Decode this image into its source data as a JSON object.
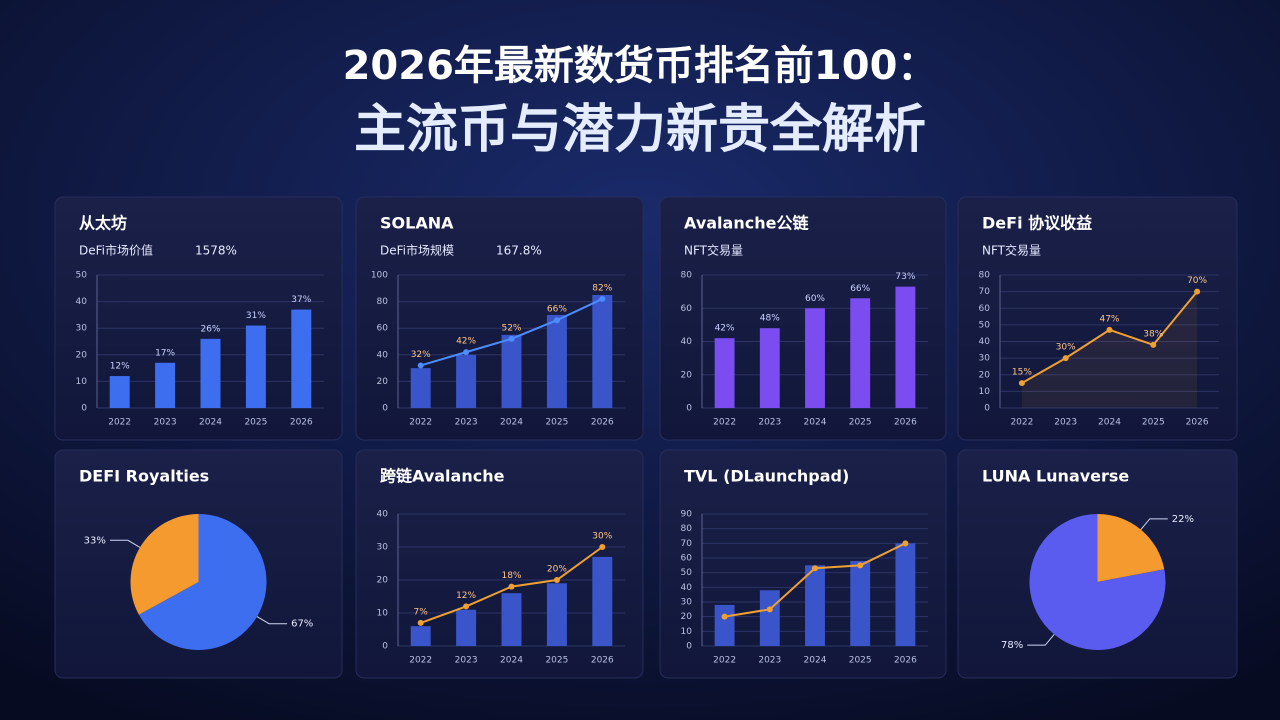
{
  "header": {
    "title": "2026年最新数货币排名前100：",
    "subtitle": "主流币与潜力新贵全解析"
  },
  "chart_data": [
    {
      "type": "bar",
      "title": "从太坊",
      "subtitle": "DeFi市场价值",
      "note": "1578%",
      "categories": [
        "2022",
        "2023",
        "2024",
        "2025",
        "2026"
      ],
      "values": [
        12,
        17,
        26,
        31,
        37
      ],
      "value_labels": [
        "12%",
        "17%",
        "26%",
        "31%",
        "37%"
      ],
      "color": "#3d6ef0",
      "ylim": [
        0,
        50
      ],
      "yticks": [
        0,
        10,
        20,
        30,
        40,
        50
      ]
    },
    {
      "type": "combo",
      "title": "SOLANA",
      "subtitle": "DeFi市场规模",
      "note": "167.8%",
      "categories": [
        "2022",
        "2023",
        "2024",
        "2025",
        "2026"
      ],
      "values": [
        30,
        40,
        55,
        70,
        85
      ],
      "line_values": [
        32,
        42,
        52,
        66,
        82
      ],
      "value_labels": [
        "32%",
        "42%",
        "52%",
        "66%",
        "82%"
      ],
      "color": "#3a55c9",
      "line_color": "#4d8cff",
      "ylim": [
        0,
        100
      ],
      "yticks": [
        0,
        20,
        40,
        60,
        80,
        100
      ]
    },
    {
      "type": "bar",
      "title": "Avalanche公链",
      "subtitle": "NFT交易量",
      "categories": [
        "2022",
        "2023",
        "2024",
        "2025",
        "2026"
      ],
      "values": [
        42,
        48,
        60,
        66,
        73
      ],
      "value_labels": [
        "42%",
        "48%",
        "60%",
        "66%",
        "73%"
      ],
      "color": "#7b4cf0",
      "ylim": [
        0,
        80
      ],
      "yticks": [
        0,
        20,
        40,
        60,
        80
      ]
    },
    {
      "type": "line",
      "title": "DeFi 协议收益",
      "subtitle": "NFT交易量",
      "categories": [
        "2022",
        "2023",
        "2024",
        "2025",
        "2026"
      ],
      "values": [
        15,
        30,
        47,
        38,
        70
      ],
      "value_labels": [
        "15%",
        "30%",
        "47%",
        "38%",
        "70%"
      ],
      "color": "#f0a030",
      "ylim": [
        0,
        80
      ],
      "yticks": [
        0,
        10,
        20,
        30,
        40,
        50,
        60,
        70,
        80
      ]
    },
    {
      "type": "pie",
      "title": "DEFI Royalties",
      "values": [
        67,
        33
      ],
      "value_labels": [
        "67%",
        "33%"
      ],
      "colors": [
        "#3d6ef0",
        "#f59a2e"
      ]
    },
    {
      "type": "combo",
      "title": "跨链Avalanche",
      "categories": [
        "2022",
        "2023",
        "2024",
        "2025",
        "2026"
      ],
      "values": [
        6,
        11,
        16,
        19,
        27
      ],
      "line_values": [
        7,
        12,
        18,
        20,
        30
      ],
      "value_labels": [
        "7%",
        "12%",
        "18%",
        "20%",
        "30%"
      ],
      "color": "#3a55c9",
      "line_color": "#f0a030",
      "ylim": [
        0,
        40
      ],
      "yticks": [
        0,
        10,
        20,
        30,
        40
      ]
    },
    {
      "type": "combo",
      "title": "TVL (DLaunchpad)",
      "categories": [
        "2022",
        "2023",
        "2024",
        "2025",
        "2026"
      ],
      "values": [
        28,
        38,
        55,
        58,
        70
      ],
      "line_values": [
        20,
        25,
        53,
        55,
        70
      ],
      "color": "#3a55c9",
      "line_color": "#f0a030",
      "ylim": [
        0,
        90
      ],
      "yticks": [
        0,
        10,
        20,
        30,
        40,
        50,
        60,
        70,
        80,
        90
      ]
    },
    {
      "type": "pie",
      "title": "LUNA Lunaverse",
      "values": [
        22,
        78
      ],
      "value_labels": [
        "22%",
        "78%"
      ],
      "colors": [
        "#f59a2e",
        "#5a5cf0"
      ]
    }
  ]
}
